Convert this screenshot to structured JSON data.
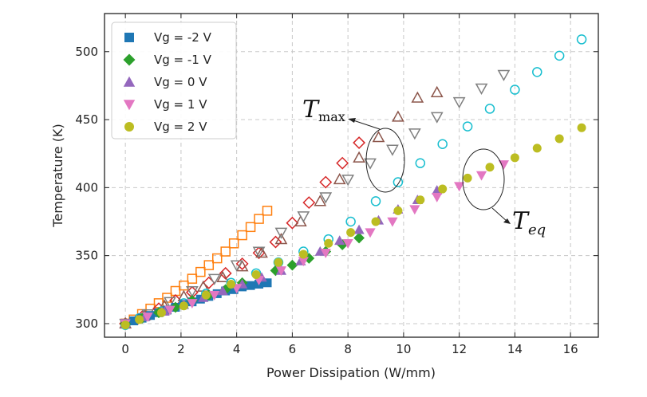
{
  "chart_data": {
    "type": "scatter",
    "xlabel": "Power Dissipation (W/mm)",
    "ylabel": "Temperature (K)",
    "xlim": [
      -0.75,
      17
    ],
    "ylim": [
      290,
      528
    ],
    "xticks": [
      0,
      2,
      4,
      6,
      8,
      10,
      12,
      14,
      16
    ],
    "yticks": [
      300,
      350,
      400,
      450,
      500
    ],
    "grid": true,
    "legend_position": "top-left",
    "series": [
      {
        "name": "Vg = -2 V",
        "marker": "square",
        "color": "#1f77b4",
        "x": [
          0,
          0.3,
          0.6,
          0.9,
          1.2,
          1.5,
          1.8,
          2.1,
          2.4,
          2.7,
          3.0,
          3.3,
          3.6,
          3.9,
          4.2,
          4.5,
          4.8,
          5.1
        ],
        "y_eq": [
          300,
          302,
          304,
          306,
          308,
          310,
          312,
          314,
          316,
          318,
          320,
          322,
          324,
          325,
          327,
          328,
          329,
          330
        ],
        "y_max": [
          300,
          303,
          307,
          311,
          315,
          319,
          324,
          328,
          333,
          338,
          343,
          348,
          353,
          359,
          365,
          371,
          377,
          383
        ]
      },
      {
        "name": "Vg = -1 V",
        "marker": "diamond",
        "color": "#2ca02c",
        "x": [
          0,
          0.6,
          1.2,
          1.8,
          2.4,
          3.0,
          3.6,
          4.2,
          4.8,
          5.4,
          6.0,
          6.6,
          7.2,
          7.8,
          8.4
        ],
        "y_eq": [
          300,
          304,
          308,
          312,
          317,
          321,
          325,
          330,
          334,
          339,
          343,
          348,
          353,
          358,
          363
        ],
        "y_max": [
          300,
          305,
          311,
          317,
          323,
          330,
          337,
          344,
          352,
          360,
          374,
          389,
          404,
          418,
          433
        ]
      },
      {
        "name": "Vg = 0 V",
        "marker": "triangle-up",
        "color": "#9467bd",
        "x": [
          0,
          0.7,
          1.4,
          2.1,
          2.8,
          3.5,
          4.2,
          4.9,
          5.6,
          6.3,
          7.0,
          7.7,
          8.4,
          9.1,
          9.8,
          10.5,
          11.2
        ],
        "y_eq": [
          300,
          305,
          309,
          314,
          319,
          324,
          329,
          334,
          339,
          346,
          353,
          361,
          369,
          376,
          384,
          391,
          398
        ],
        "y_max": [
          300,
          306,
          313,
          320,
          327,
          334,
          342,
          352,
          362,
          375,
          390,
          406,
          422,
          437,
          452,
          466,
          470
        ]
      },
      {
        "name": "Vg = 1 V",
        "marker": "triangle-down",
        "color": "#e377c2",
        "x": [
          0,
          0.8,
          1.6,
          2.4,
          3.2,
          4.0,
          4.8,
          5.6,
          6.4,
          7.2,
          8.0,
          8.8,
          9.6,
          10.4,
          11.2,
          12.0,
          12.8,
          13.6
        ],
        "y_eq": [
          300,
          305,
          310,
          315,
          321,
          326,
          332,
          339,
          346,
          352,
          359,
          367,
          375,
          384,
          393,
          401,
          409,
          417
        ],
        "y_max": [
          300,
          307,
          316,
          324,
          333,
          343,
          353,
          367,
          379,
          393,
          406,
          418,
          428,
          440,
          452,
          463,
          473,
          483
        ]
      },
      {
        "name": "Vg = 2 V",
        "marker": "circle",
        "color": "#bcbd22",
        "x": [
          0,
          0.5,
          1.3,
          2.1,
          2.9,
          3.8,
          4.7,
          5.5,
          6.4,
          7.3,
          8.1,
          9.0,
          9.8,
          10.6,
          11.4,
          12.3,
          13.1,
          14.0,
          14.8,
          15.6,
          16.4
        ],
        "y_eq": [
          299,
          303,
          308,
          313,
          321,
          329,
          336,
          345,
          351,
          359,
          367,
          375,
          383,
          391,
          399,
          407,
          415,
          422,
          429,
          436,
          444
        ],
        "y_max": [
          299,
          304,
          309,
          315,
          322,
          330,
          337,
          345,
          353,
          362,
          375,
          390,
          404,
          418,
          432,
          445,
          458,
          472,
          485,
          497,
          509
        ]
      }
    ],
    "annotations": [
      {
        "label": "T",
        "subscript": "max",
        "target_x": 9.6,
        "target_y": 425
      },
      {
        "label": "T",
        "subscript": "eq",
        "target_x": 12.8,
        "target_y": 411
      }
    ]
  }
}
